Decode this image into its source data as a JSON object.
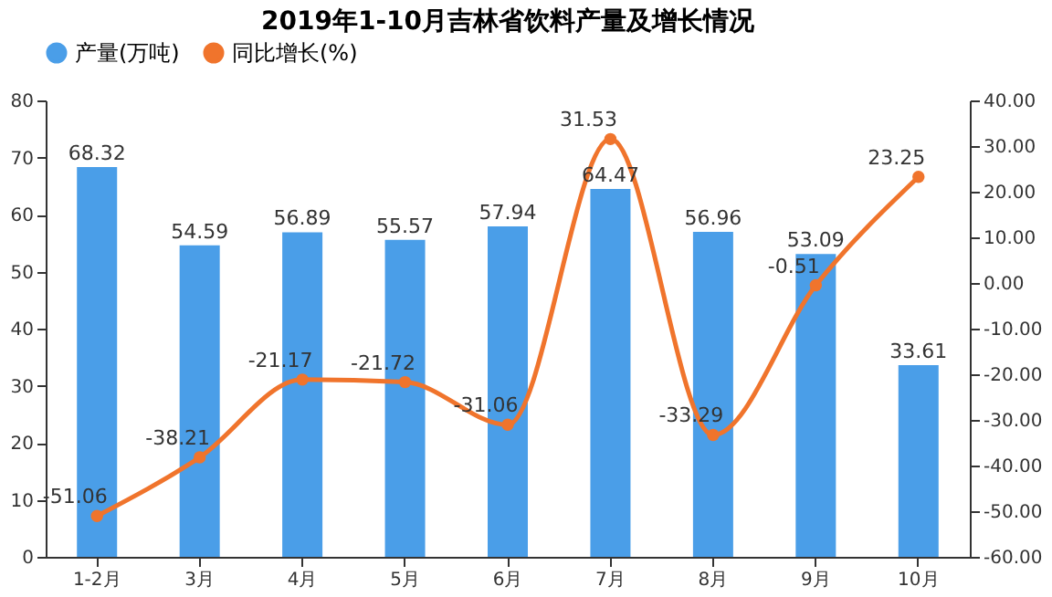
{
  "chart_data": {
    "type": "bar",
    "title": "2019年1-10月吉林省饮料产量及增长情况",
    "categories": [
      "1-2月",
      "3月",
      "4月",
      "5月",
      "6月",
      "7月",
      "8月",
      "9月",
      "10月"
    ],
    "series": [
      {
        "name": "产量(万吨)",
        "type": "bar",
        "color": "#4a9ee8",
        "values": [
          68.32,
          54.59,
          56.89,
          55.57,
          57.94,
          64.47,
          56.96,
          53.09,
          33.61
        ]
      },
      {
        "name": "同比增长(%)",
        "type": "line",
        "axis": "y2",
        "color": "#f0742c",
        "values": [
          -51.06,
          -38.21,
          -21.17,
          -21.72,
          -31.06,
          31.53,
          -33.29,
          -0.51,
          23.25
        ]
      }
    ],
    "ylim": [
      0,
      80
    ],
    "yticks": [
      0,
      10,
      20,
      30,
      40,
      50,
      60,
      70,
      80
    ],
    "y2lim": [
      -60,
      40
    ],
    "y2ticks": [
      {
        "value": 40,
        "label": "40.00"
      },
      {
        "value": 30,
        "label": "30.00"
      },
      {
        "value": 20,
        "label": "20.00"
      },
      {
        "value": 10,
        "label": "10.00"
      },
      {
        "value": 0,
        "label": "0.00"
      },
      {
        "value": -10,
        "label": "-10.00"
      },
      {
        "value": -20,
        "label": "-20.00"
      },
      {
        "value": -30,
        "label": "-30.00"
      },
      {
        "value": -40,
        "label": "-40.00"
      },
      {
        "value": -50,
        "label": "-50.00"
      },
      {
        "value": -60,
        "label": "-60.00"
      }
    ],
    "data_labels": true,
    "grid": false,
    "legend": "top",
    "marker": "circle",
    "line_style": "solid"
  }
}
